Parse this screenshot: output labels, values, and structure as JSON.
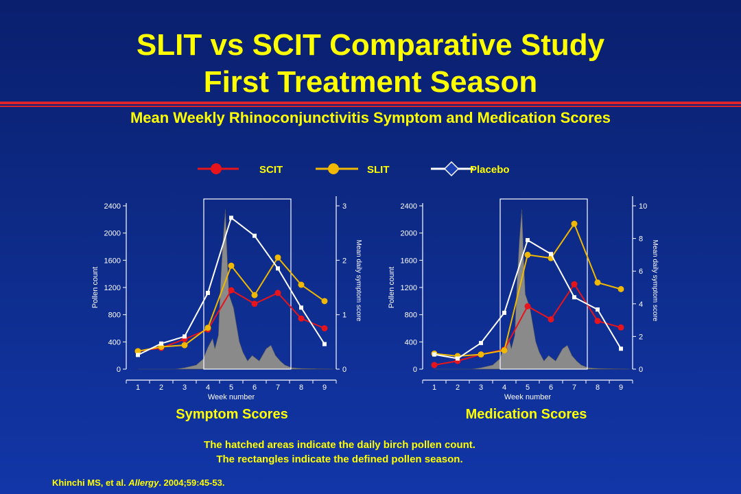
{
  "slide": {
    "title_line1": "SLIT vs SCIT Comparative Study",
    "title_line2": "First Treatment Season",
    "subtitle": "Mean Weekly Rhinoconjunctivitis Symptom and Medication Scores",
    "note_line1": "The hatched areas indicate the daily birch pollen count.",
    "note_line2": "The rectangles indicate the defined pollen season.",
    "citation_authors": "Khinchi MS, et al. ",
    "citation_journal": "Allergy",
    "citation_rest": ". 2004;59:45-53."
  },
  "legend": [
    {
      "label": "SCIT",
      "color": "#e8141c",
      "marker": "circle"
    },
    {
      "label": "SLIT",
      "color": "#f0b800",
      "marker": "circle"
    },
    {
      "label": "Placebo",
      "color": "#ffffff",
      "marker": "diamond"
    }
  ],
  "chart_data": [
    {
      "type": "line",
      "caption": "Symptom Scores",
      "x": [
        1,
        2,
        3,
        4,
        5,
        6,
        7,
        8,
        9
      ],
      "xlabel": "Week number",
      "ylabel_left": "Pollen count",
      "ylabel_right": "Mean daily symptom score",
      "ylim_left": [
        0,
        2400
      ],
      "yticks_left": [
        0,
        400,
        800,
        1200,
        1600,
        2000,
        2400
      ],
      "ylim_right": [
        0,
        3
      ],
      "yticks_right": [
        0,
        1,
        2,
        3
      ],
      "pollen_season_weeks": [
        4,
        7.5
      ],
      "series": [
        {
          "name": "SCIT",
          "values": [
            0.33,
            0.39,
            0.55,
            0.73,
            1.45,
            1.2,
            1.4,
            0.93,
            0.75
          ]
        },
        {
          "name": "SLIT",
          "values": [
            0.33,
            0.41,
            0.44,
            0.76,
            1.9,
            1.36,
            2.05,
            1.55,
            1.25
          ]
        },
        {
          "name": "Placebo",
          "values": [
            0.26,
            0.47,
            0.6,
            1.4,
            2.78,
            2.45,
            1.85,
            1.13,
            0.46
          ]
        }
      ],
      "pollen_count_profile": [
        [
          1,
          0
        ],
        [
          2.6,
          0
        ],
        [
          3,
          20
        ],
        [
          3.5,
          60
        ],
        [
          3.8,
          150
        ],
        [
          4.0,
          320
        ],
        [
          4.2,
          450
        ],
        [
          4.3,
          300
        ],
        [
          4.45,
          500
        ],
        [
          4.55,
          1300
        ],
        [
          4.65,
          1900
        ],
        [
          4.75,
          2350
        ],
        [
          4.82,
          1700
        ],
        [
          4.9,
          1100
        ],
        [
          5.0,
          1000
        ],
        [
          5.1,
          900
        ],
        [
          5.25,
          600
        ],
        [
          5.35,
          400
        ],
        [
          5.5,
          250
        ],
        [
          5.7,
          120
        ],
        [
          5.9,
          200
        ],
        [
          6.2,
          120
        ],
        [
          6.5,
          300
        ],
        [
          6.7,
          350
        ],
        [
          6.9,
          200
        ],
        [
          7.1,
          120
        ],
        [
          7.3,
          60
        ],
        [
          7.6,
          20
        ],
        [
          8.0,
          10
        ],
        [
          9.4,
          0
        ]
      ]
    },
    {
      "type": "line",
      "caption": "Medication Scores",
      "x": [
        1,
        2,
        3,
        4,
        5,
        6,
        7,
        8,
        9
      ],
      "xlabel": "Week number",
      "ylabel_left": "Pollen count",
      "ylabel_right": "Mean daily symptom score",
      "ylim_left": [
        0,
        2400
      ],
      "yticks_left": [
        0,
        400,
        800,
        1200,
        1600,
        2000,
        2400
      ],
      "ylim_right": [
        0,
        10
      ],
      "yticks_right": [
        0,
        2,
        4,
        6,
        8,
        10
      ],
      "pollen_season_weeks": [
        4,
        7.5
      ],
      "series": [
        {
          "name": "SCIT",
          "values": [
            0.25,
            0.5,
            0.9,
            1.2,
            3.85,
            3.05,
            5.2,
            2.95,
            2.55
          ]
        },
        {
          "name": "SLIT",
          "values": [
            0.95,
            0.8,
            0.9,
            1.15,
            7.0,
            6.8,
            8.9,
            5.3,
            4.9
          ]
        },
        {
          "name": "Placebo",
          "values": [
            0.9,
            0.65,
            1.6,
            3.45,
            7.9,
            7.05,
            4.4,
            3.65,
            1.25
          ]
        }
      ],
      "pollen_count_profile": [
        [
          1,
          0
        ],
        [
          2.6,
          0
        ],
        [
          3,
          20
        ],
        [
          3.5,
          60
        ],
        [
          3.8,
          150
        ],
        [
          4.0,
          320
        ],
        [
          4.2,
          450
        ],
        [
          4.3,
          300
        ],
        [
          4.45,
          500
        ],
        [
          4.55,
          1300
        ],
        [
          4.65,
          1900
        ],
        [
          4.75,
          2350
        ],
        [
          4.82,
          1700
        ],
        [
          4.9,
          1100
        ],
        [
          5.0,
          1000
        ],
        [
          5.1,
          900
        ],
        [
          5.25,
          600
        ],
        [
          5.35,
          400
        ],
        [
          5.5,
          250
        ],
        [
          5.7,
          120
        ],
        [
          5.9,
          200
        ],
        [
          6.2,
          120
        ],
        [
          6.5,
          300
        ],
        [
          6.7,
          350
        ],
        [
          6.9,
          200
        ],
        [
          7.1,
          120
        ],
        [
          7.3,
          60
        ],
        [
          7.6,
          20
        ],
        [
          8.0,
          10
        ],
        [
          9.4,
          0
        ]
      ]
    }
  ]
}
